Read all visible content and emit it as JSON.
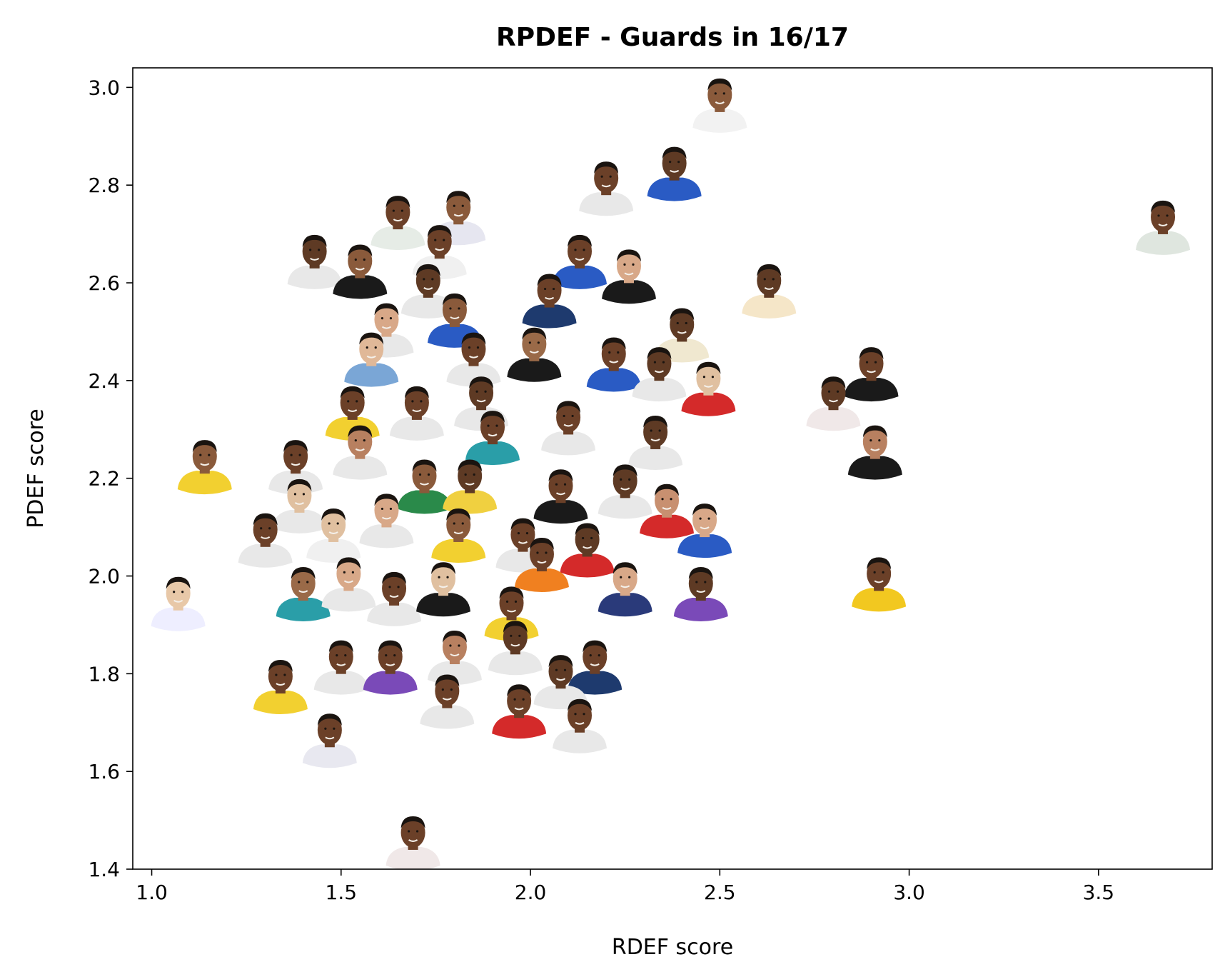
{
  "chart_data": {
    "type": "scatter",
    "title": "RPDEF - Guards in 16/17",
    "xlabel": "RDEF score",
    "ylabel": "PDEF score",
    "xlim": [
      0.95,
      3.8
    ],
    "ylim": [
      1.4,
      3.04
    ],
    "xticks": [
      "1.0",
      "1.5",
      "2.0",
      "2.5",
      "3.0",
      "3.5"
    ],
    "yticks": [
      "1.4",
      "1.6",
      "1.8",
      "2.0",
      "2.2",
      "2.4",
      "2.6",
      "2.8",
      "3.0"
    ],
    "grid": false,
    "marker": "player headshot",
    "points": [
      {
        "x": 2.5,
        "y": 2.97,
        "skin": "#8a5a3b",
        "jersey": "#f2f2f2"
      },
      {
        "x": 2.2,
        "y": 2.8,
        "skin": "#6b4028",
        "jersey": "#e8e8e8"
      },
      {
        "x": 2.38,
        "y": 2.83,
        "skin": "#5e3a24",
        "jersey": "#2a5bc4"
      },
      {
        "x": 3.67,
        "y": 2.72,
        "skin": "#6b4028",
        "jersey": "#dfe6df"
      },
      {
        "x": 1.65,
        "y": 2.73,
        "skin": "#6b4028",
        "jersey": "#e6ece6"
      },
      {
        "x": 1.81,
        "y": 2.74,
        "skin": "#8a5a3b",
        "jersey": "#e6e6f0"
      },
      {
        "x": 1.43,
        "y": 2.65,
        "skin": "#5e3a24",
        "jersey": "#e8e8e8"
      },
      {
        "x": 1.55,
        "y": 2.63,
        "skin": "#8a5a3b",
        "jersey": "#1a1a1a"
      },
      {
        "x": 1.76,
        "y": 2.67,
        "skin": "#6b4028",
        "jersey": "#f0f0f0"
      },
      {
        "x": 1.73,
        "y": 2.59,
        "skin": "#5e3a24",
        "jersey": "#e8e8e8"
      },
      {
        "x": 2.13,
        "y": 2.65,
        "skin": "#6b4028",
        "jersey": "#2a5bc4"
      },
      {
        "x": 2.26,
        "y": 2.62,
        "skin": "#d8a888",
        "jersey": "#1a1a1a"
      },
      {
        "x": 2.05,
        "y": 2.57,
        "skin": "#6b4028",
        "jersey": "#1e3a6e"
      },
      {
        "x": 2.63,
        "y": 2.59,
        "skin": "#5e3a24",
        "jersey": "#f5e6c8"
      },
      {
        "x": 1.8,
        "y": 2.53,
        "skin": "#8a5a3b",
        "jersey": "#2a5bc4"
      },
      {
        "x": 1.62,
        "y": 2.51,
        "skin": "#d8a888",
        "jersey": "#e8e8e8"
      },
      {
        "x": 1.58,
        "y": 2.45,
        "skin": "#e0b898",
        "jersey": "#7aa6d6"
      },
      {
        "x": 1.85,
        "y": 2.45,
        "skin": "#6b4028",
        "jersey": "#e8e8e8"
      },
      {
        "x": 2.01,
        "y": 2.46,
        "skin": "#9a6a48",
        "jersey": "#1a1a1a"
      },
      {
        "x": 2.22,
        "y": 2.44,
        "skin": "#6b4028",
        "jersey": "#2a5bc4"
      },
      {
        "x": 2.4,
        "y": 2.5,
        "skin": "#5e3a24",
        "jersey": "#f0e8d0"
      },
      {
        "x": 2.34,
        "y": 2.42,
        "skin": "#5e3a24",
        "jersey": "#e8e8e8"
      },
      {
        "x": 2.47,
        "y": 2.39,
        "skin": "#e0c0a0",
        "jersey": "#d42a2a"
      },
      {
        "x": 2.9,
        "y": 2.42,
        "skin": "#6b4028",
        "jersey": "#1a1a1a"
      },
      {
        "x": 2.8,
        "y": 2.36,
        "skin": "#5e3a24",
        "jersey": "#f0e8e8"
      },
      {
        "x": 2.91,
        "y": 2.26,
        "skin": "#b88060",
        "jersey": "#1a1a1a"
      },
      {
        "x": 1.53,
        "y": 2.34,
        "skin": "#6b4028",
        "jersey": "#f2d030"
      },
      {
        "x": 1.7,
        "y": 2.34,
        "skin": "#6b4028",
        "jersey": "#e8e8e8"
      },
      {
        "x": 1.87,
        "y": 2.36,
        "skin": "#5e3a24",
        "jersey": "#e8e8e8"
      },
      {
        "x": 2.1,
        "y": 2.31,
        "skin": "#6b4028",
        "jersey": "#e8e8e8"
      },
      {
        "x": 2.33,
        "y": 2.28,
        "skin": "#5e3a24",
        "jersey": "#e8e8e8"
      },
      {
        "x": 1.55,
        "y": 2.26,
        "skin": "#b88060",
        "jersey": "#e8e8e8"
      },
      {
        "x": 1.9,
        "y": 2.29,
        "skin": "#6b4028",
        "jersey": "#2a9ea8"
      },
      {
        "x": 1.14,
        "y": 2.23,
        "skin": "#8a5a3b",
        "jersey": "#f2d030"
      },
      {
        "x": 1.38,
        "y": 2.23,
        "skin": "#6b4028",
        "jersey": "#e8e8e8"
      },
      {
        "x": 1.72,
        "y": 2.19,
        "skin": "#8a5a3b",
        "jersey": "#2a8a4a"
      },
      {
        "x": 1.84,
        "y": 2.19,
        "skin": "#5e3a24",
        "jersey": "#f0d040"
      },
      {
        "x": 2.08,
        "y": 2.17,
        "skin": "#6b4028",
        "jersey": "#1a1a1a"
      },
      {
        "x": 2.25,
        "y": 2.18,
        "skin": "#5e3a24",
        "jersey": "#e8e8e8"
      },
      {
        "x": 2.36,
        "y": 2.14,
        "skin": "#c89070",
        "jersey": "#d42a2a"
      },
      {
        "x": 2.46,
        "y": 2.1,
        "skin": "#d8a888",
        "jersey": "#2a5bc4"
      },
      {
        "x": 1.39,
        "y": 2.15,
        "skin": "#e0c0a0",
        "jersey": "#e8e8e8"
      },
      {
        "x": 1.3,
        "y": 2.08,
        "skin": "#6b4028",
        "jersey": "#e8e8e8"
      },
      {
        "x": 1.48,
        "y": 2.09,
        "skin": "#e0c0a0",
        "jersey": "#f0f0f0"
      },
      {
        "x": 1.62,
        "y": 2.12,
        "skin": "#d8a888",
        "jersey": "#e8e8e8"
      },
      {
        "x": 1.81,
        "y": 2.09,
        "skin": "#8a5a3b",
        "jersey": "#f2d030"
      },
      {
        "x": 1.98,
        "y": 2.07,
        "skin": "#6b4028",
        "jersey": "#e8e8e8"
      },
      {
        "x": 2.15,
        "y": 2.06,
        "skin": "#5e3a24",
        "jersey": "#d42a2a"
      },
      {
        "x": 1.07,
        "y": 1.95,
        "skin": "#e8c8a8",
        "jersey": "#eeeeff"
      },
      {
        "x": 1.4,
        "y": 1.97,
        "skin": "#9a6a48",
        "jersey": "#2a9ea8"
      },
      {
        "x": 1.52,
        "y": 1.99,
        "skin": "#d8a888",
        "jersey": "#e8e8e8"
      },
      {
        "x": 1.64,
        "y": 1.96,
        "skin": "#6b4028",
        "jersey": "#e8e8e8"
      },
      {
        "x": 1.77,
        "y": 1.98,
        "skin": "#e0c0a0",
        "jersey": "#1a1a1a"
      },
      {
        "x": 1.95,
        "y": 1.93,
        "skin": "#6b4028",
        "jersey": "#f2d030"
      },
      {
        "x": 2.03,
        "y": 2.03,
        "skin": "#6b4028",
        "jersey": "#f08020"
      },
      {
        "x": 2.25,
        "y": 1.98,
        "skin": "#d8a888",
        "jersey": "#2a3a7a"
      },
      {
        "x": 2.45,
        "y": 1.97,
        "skin": "#5e3a24",
        "jersey": "#7a4ab8"
      },
      {
        "x": 2.92,
        "y": 1.99,
        "skin": "#6b4028",
        "jersey": "#f2c820"
      },
      {
        "x": 1.34,
        "y": 1.78,
        "skin": "#6b4028",
        "jersey": "#f2d030"
      },
      {
        "x": 1.5,
        "y": 1.82,
        "skin": "#6b4028",
        "jersey": "#e8e8e8"
      },
      {
        "x": 1.63,
        "y": 1.82,
        "skin": "#6b4028",
        "jersey": "#7a4ab8"
      },
      {
        "x": 1.8,
        "y": 1.84,
        "skin": "#b88060",
        "jersey": "#e8e8e8"
      },
      {
        "x": 1.96,
        "y": 1.86,
        "skin": "#5e3a24",
        "jersey": "#e8e8e8"
      },
      {
        "x": 2.17,
        "y": 1.82,
        "skin": "#6b4028",
        "jersey": "#1e3a6e"
      },
      {
        "x": 2.08,
        "y": 1.79,
        "skin": "#5e3a24",
        "jersey": "#e8e8e8"
      },
      {
        "x": 1.78,
        "y": 1.75,
        "skin": "#6b4028",
        "jersey": "#e8e8e8"
      },
      {
        "x": 1.97,
        "y": 1.73,
        "skin": "#6b4028",
        "jersey": "#d42a2a"
      },
      {
        "x": 2.13,
        "y": 1.7,
        "skin": "#6b4028",
        "jersey": "#e8e8e8"
      },
      {
        "x": 1.47,
        "y": 1.67,
        "skin": "#6b4028",
        "jersey": "#e8e8f0"
      },
      {
        "x": 1.69,
        "y": 1.46,
        "skin": "#6b4028",
        "jersey": "#f0e8e8"
      }
    ]
  }
}
